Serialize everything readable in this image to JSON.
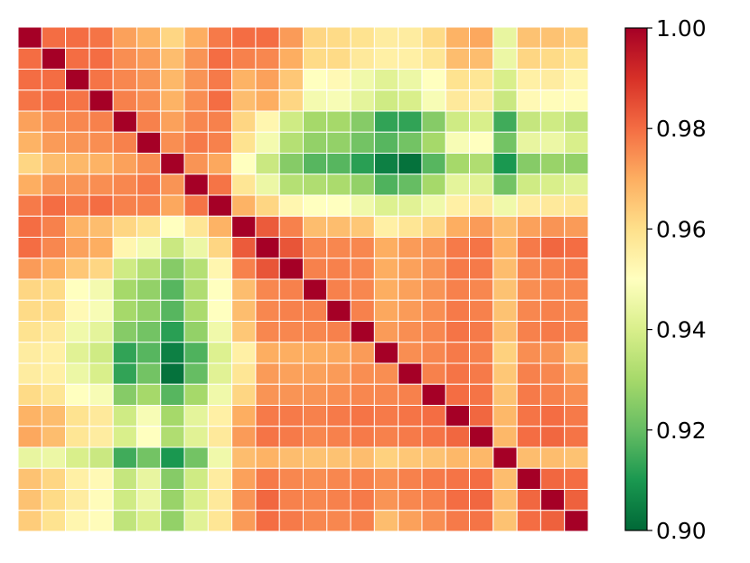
{
  "chart_data": {
    "type": "heatmap",
    "rows": 24,
    "cols": 24,
    "values": [
      [
        1.0,
        0.98,
        0.98,
        0.979,
        0.972,
        0.969,
        0.962,
        0.97,
        0.978,
        0.98,
        0.98,
        0.973,
        0.962,
        0.961,
        0.959,
        0.956,
        0.956,
        0.961,
        0.969,
        0.971,
        0.944,
        0.966,
        0.966,
        0.964
      ],
      [
        0.98,
        1.0,
        0.98,
        0.98,
        0.975,
        0.973,
        0.967,
        0.974,
        0.98,
        0.977,
        0.976,
        0.97,
        0.961,
        0.961,
        0.957,
        0.955,
        0.955,
        0.958,
        0.967,
        0.967,
        0.945,
        0.962,
        0.961,
        0.959
      ],
      [
        0.98,
        0.98,
        1.0,
        0.979,
        0.976,
        0.974,
        0.968,
        0.974,
        0.978,
        0.969,
        0.972,
        0.965,
        0.95,
        0.952,
        0.946,
        0.942,
        0.945,
        0.95,
        0.959,
        0.958,
        0.94,
        0.955,
        0.956,
        0.953
      ],
      [
        0.979,
        0.98,
        0.979,
        1.0,
        0.977,
        0.975,
        0.969,
        0.975,
        0.98,
        0.967,
        0.97,
        0.962,
        0.947,
        0.948,
        0.943,
        0.938,
        0.94,
        0.948,
        0.957,
        0.956,
        0.937,
        0.952,
        0.951,
        0.951
      ],
      [
        0.972,
        0.975,
        0.976,
        0.977,
        1.0,
        0.977,
        0.972,
        0.976,
        0.977,
        0.962,
        0.953,
        0.938,
        0.93,
        0.93,
        0.925,
        0.913,
        0.913,
        0.925,
        0.938,
        0.94,
        0.915,
        0.936,
        0.938,
        0.935
      ],
      [
        0.969,
        0.973,
        0.974,
        0.975,
        0.977,
        1.0,
        0.975,
        0.978,
        0.977,
        0.959,
        0.947,
        0.933,
        0.927,
        0.927,
        0.922,
        0.918,
        0.922,
        0.93,
        0.948,
        0.95,
        0.922,
        0.944,
        0.945,
        0.94
      ],
      [
        0.962,
        0.967,
        0.968,
        0.969,
        0.972,
        0.975,
        1.0,
        0.974,
        0.971,
        0.95,
        0.937,
        0.925,
        0.918,
        0.918,
        0.912,
        0.905,
        0.902,
        0.918,
        0.93,
        0.932,
        0.91,
        0.925,
        0.928,
        0.927
      ],
      [
        0.97,
        0.974,
        0.974,
        0.975,
        0.976,
        0.978,
        0.974,
        1.0,
        0.979,
        0.958,
        0.945,
        0.933,
        0.932,
        0.931,
        0.927,
        0.917,
        0.92,
        0.93,
        0.943,
        0.942,
        0.922,
        0.938,
        0.94,
        0.942
      ],
      [
        0.978,
        0.98,
        0.978,
        0.98,
        0.977,
        0.977,
        0.971,
        0.979,
        1.0,
        0.969,
        0.962,
        0.953,
        0.95,
        0.95,
        0.946,
        0.941,
        0.942,
        0.946,
        0.955,
        0.957,
        0.946,
        0.956,
        0.957,
        0.958
      ],
      [
        0.98,
        0.977,
        0.969,
        0.967,
        0.962,
        0.959,
        0.95,
        0.958,
        0.969,
        1.0,
        0.983,
        0.977,
        0.967,
        0.967,
        0.965,
        0.955,
        0.958,
        0.962,
        0.97,
        0.973,
        0.967,
        0.972,
        0.974,
        0.973
      ],
      [
        0.98,
        0.976,
        0.972,
        0.97,
        0.953,
        0.947,
        0.937,
        0.945,
        0.962,
        0.983,
        1.0,
        0.984,
        0.976,
        0.976,
        0.976,
        0.97,
        0.973,
        0.974,
        0.978,
        0.979,
        0.969,
        0.978,
        0.981,
        0.98
      ],
      [
        0.973,
        0.97,
        0.965,
        0.962,
        0.938,
        0.933,
        0.925,
        0.933,
        0.953,
        0.977,
        0.984,
        1.0,
        0.977,
        0.977,
        0.976,
        0.97,
        0.972,
        0.974,
        0.978,
        0.978,
        0.967,
        0.976,
        0.977,
        0.978
      ],
      [
        0.962,
        0.961,
        0.95,
        0.947,
        0.93,
        0.927,
        0.918,
        0.932,
        0.95,
        0.967,
        0.976,
        0.977,
        1.0,
        0.977,
        0.976,
        0.97,
        0.972,
        0.974,
        0.977,
        0.976,
        0.966,
        0.975,
        0.976,
        0.976
      ],
      [
        0.961,
        0.961,
        0.952,
        0.948,
        0.93,
        0.927,
        0.918,
        0.931,
        0.95,
        0.967,
        0.976,
        0.977,
        0.977,
        1.0,
        0.977,
        0.971,
        0.973,
        0.975,
        0.978,
        0.977,
        0.966,
        0.976,
        0.977,
        0.976
      ],
      [
        0.959,
        0.957,
        0.946,
        0.943,
        0.925,
        0.922,
        0.912,
        0.927,
        0.946,
        0.965,
        0.976,
        0.976,
        0.976,
        0.977,
        1.0,
        0.973,
        0.975,
        0.976,
        0.979,
        0.978,
        0.967,
        0.977,
        0.978,
        0.977
      ],
      [
        0.956,
        0.955,
        0.942,
        0.938,
        0.913,
        0.918,
        0.905,
        0.917,
        0.941,
        0.955,
        0.97,
        0.97,
        0.97,
        0.971,
        0.973,
        1.0,
        0.975,
        0.976,
        0.978,
        0.977,
        0.963,
        0.975,
        0.974,
        0.967
      ],
      [
        0.956,
        0.955,
        0.945,
        0.94,
        0.913,
        0.922,
        0.902,
        0.92,
        0.942,
        0.958,
        0.973,
        0.972,
        0.972,
        0.973,
        0.975,
        0.975,
        1.0,
        0.977,
        0.979,
        0.978,
        0.965,
        0.977,
        0.976,
        0.972
      ],
      [
        0.961,
        0.958,
        0.95,
        0.948,
        0.925,
        0.93,
        0.918,
        0.93,
        0.946,
        0.962,
        0.974,
        0.974,
        0.974,
        0.975,
        0.976,
        0.976,
        0.977,
        1.0,
        0.98,
        0.979,
        0.966,
        0.978,
        0.977,
        0.975
      ],
      [
        0.969,
        0.967,
        0.959,
        0.957,
        0.938,
        0.948,
        0.93,
        0.943,
        0.955,
        0.97,
        0.978,
        0.978,
        0.977,
        0.978,
        0.979,
        0.978,
        0.979,
        0.98,
        1.0,
        0.981,
        0.968,
        0.979,
        0.98,
        0.978
      ],
      [
        0.971,
        0.967,
        0.958,
        0.956,
        0.94,
        0.95,
        0.932,
        0.942,
        0.957,
        0.973,
        0.979,
        0.978,
        0.976,
        0.977,
        0.978,
        0.977,
        0.978,
        0.979,
        0.981,
        1.0,
        0.968,
        0.98,
        0.981,
        0.979
      ],
      [
        0.944,
        0.945,
        0.94,
        0.937,
        0.915,
        0.922,
        0.91,
        0.922,
        0.946,
        0.967,
        0.969,
        0.967,
        0.966,
        0.966,
        0.967,
        0.963,
        0.965,
        0.966,
        0.968,
        0.968,
        1.0,
        0.967,
        0.967,
        0.966
      ],
      [
        0.966,
        0.962,
        0.955,
        0.952,
        0.936,
        0.944,
        0.925,
        0.938,
        0.956,
        0.972,
        0.978,
        0.976,
        0.975,
        0.976,
        0.977,
        0.975,
        0.977,
        0.978,
        0.979,
        0.98,
        0.967,
        1.0,
        0.981,
        0.98
      ],
      [
        0.966,
        0.961,
        0.956,
        0.951,
        0.938,
        0.945,
        0.928,
        0.94,
        0.957,
        0.974,
        0.981,
        0.977,
        0.976,
        0.977,
        0.978,
        0.974,
        0.976,
        0.977,
        0.98,
        0.981,
        0.967,
        0.981,
        1.0,
        0.982
      ],
      [
        0.964,
        0.959,
        0.953,
        0.951,
        0.935,
        0.94,
        0.927,
        0.942,
        0.958,
        0.973,
        0.98,
        0.978,
        0.976,
        0.976,
        0.977,
        0.967,
        0.972,
        0.975,
        0.978,
        0.979,
        0.966,
        0.98,
        0.982,
        1.0
      ]
    ],
    "vmin": 0.9,
    "vmax": 1.0,
    "colormap": "RdYlGn_r",
    "colorbar": {
      "ticks": [
        0.9,
        0.92,
        0.94,
        0.96,
        0.98,
        1.0
      ],
      "tick_labels": [
        "0.90",
        "0.92",
        "0.94",
        "0.96",
        "0.98",
        "1.00"
      ]
    },
    "title": "",
    "xlabel": "",
    "ylabel": "",
    "grid": true,
    "grid_color": "#ffffff"
  }
}
